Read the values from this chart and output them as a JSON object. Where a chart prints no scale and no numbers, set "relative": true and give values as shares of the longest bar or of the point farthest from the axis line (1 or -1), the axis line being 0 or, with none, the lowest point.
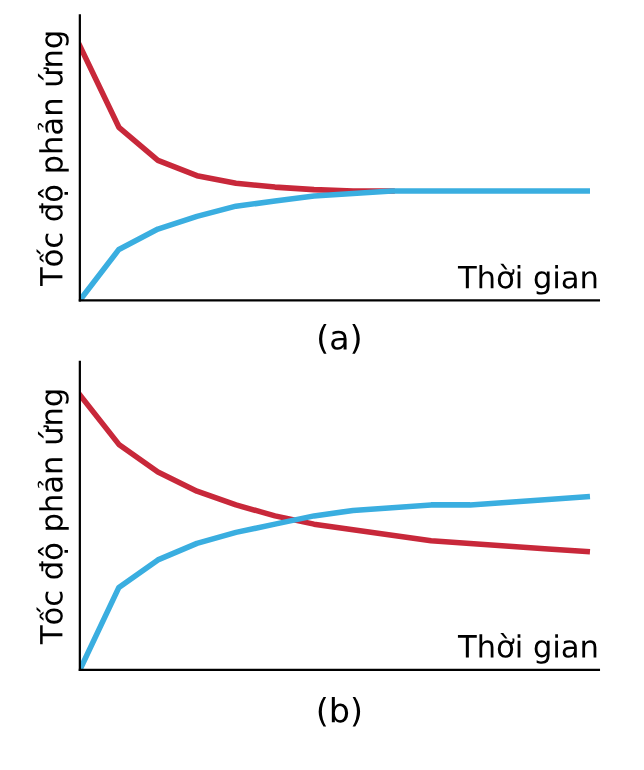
{
  "chart_data": [
    {
      "type": "line",
      "relative": true,
      "ylabel": "Tốc độ phản ứng",
      "xlabel": "Thời gian",
      "annotations": [
        "(a)"
      ],
      "tick_labels": false,
      "categories": [
        null,
        null,
        null,
        null,
        null,
        null,
        null,
        null,
        null,
        null,
        null,
        null,
        null,
        null
      ],
      "series": [
        {
          "color": "#c8283a",
          "values": [
            1.0,
            0.68,
            0.55,
            0.49,
            0.46,
            0.445,
            0.435,
            0.43,
            0.43,
            null,
            null,
            null,
            null,
            null
          ]
        },
        {
          "color": "#3aaee0",
          "values": [
            0,
            0.2,
            0.28,
            0.33,
            0.37,
            0.39,
            0.41,
            0.42,
            0.43,
            0.43,
            0.43,
            0.43,
            0.43,
            0.43
          ]
        }
      ]
    },
    {
      "type": "line",
      "relative": true,
      "ylabel": "Tốc độ phản ứng",
      "xlabel": "Thời gian",
      "annotations": [
        "(b)"
      ],
      "tick_labels": false,
      "categories": [
        null,
        null,
        null,
        null,
        null,
        null,
        null,
        null,
        null,
        null,
        null,
        null,
        null,
        null
      ],
      "series": [
        {
          "color": "#c8283a",
          "values": [
            1.0,
            0.82,
            0.72,
            0.65,
            0.6,
            0.56,
            0.53,
            0.51,
            0.49,
            0.47,
            0.46,
            0.45,
            0.44,
            0.43
          ]
        },
        {
          "color": "#3aaee0",
          "values": [
            0,
            0.3,
            0.4,
            0.46,
            0.5,
            0.53,
            0.56,
            0.58,
            0.59,
            0.6,
            0.6,
            0.61,
            0.62,
            0.63
          ]
        }
      ]
    }
  ]
}
